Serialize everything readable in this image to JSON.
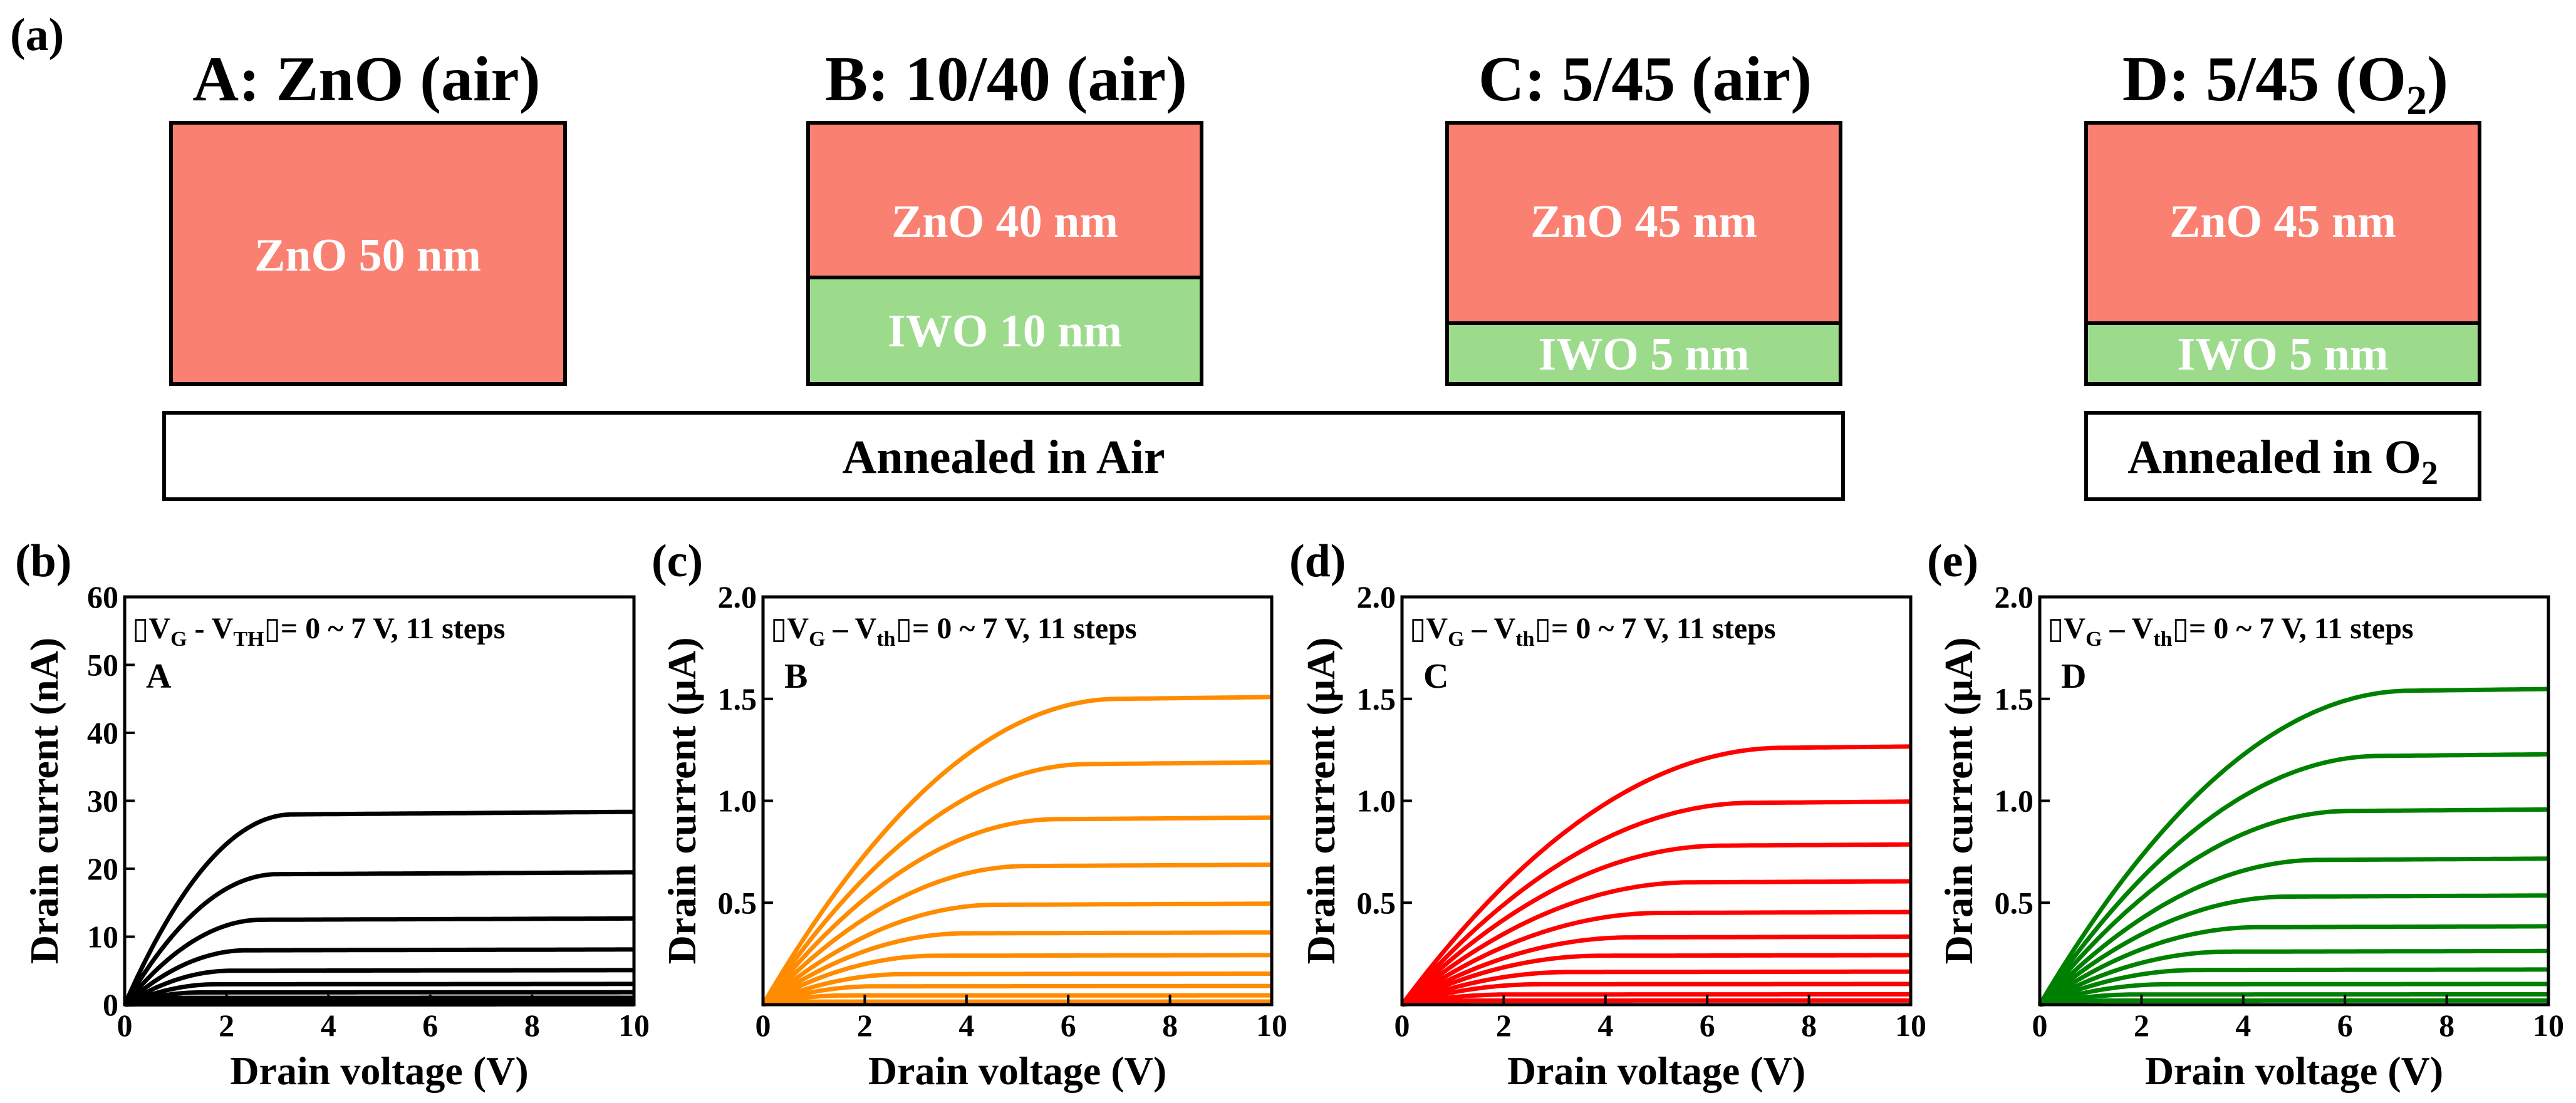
{
  "figure_label_a": "(a)",
  "schematic": {
    "devices": [
      {
        "id": "A",
        "title_pre": "A: ZnO (air)",
        "title_sub": "",
        "title_post": "",
        "layers": [
          {
            "name": "zno",
            "label": "ZnO 50 nm"
          }
        ]
      },
      {
        "id": "B",
        "title_pre": "B: 10/40 (air)",
        "title_sub": "",
        "title_post": "",
        "layers": [
          {
            "name": "zno",
            "label": "ZnO 40 nm"
          },
          {
            "name": "iwo",
            "label": "IWO 10 nm"
          }
        ]
      },
      {
        "id": "C",
        "title_pre": "C: 5/45 (air)",
        "title_sub": "",
        "title_post": "",
        "layers": [
          {
            "name": "zno",
            "label": "ZnO 45 nm"
          },
          {
            "name": "iwo",
            "label": "IWO 5 nm"
          }
        ]
      },
      {
        "id": "D",
        "title_pre": "D: 5/45 (O",
        "title_sub": "2",
        "title_post": ")",
        "layers": [
          {
            "name": "zno",
            "label": "ZnO 45 nm"
          },
          {
            "name": "iwo",
            "label": "IWO 5 nm"
          }
        ]
      }
    ],
    "annealing": [
      {
        "pre": "Annealed in Air",
        "sub": ""
      },
      {
        "pre": "Annealed in O",
        "sub": "2"
      }
    ]
  },
  "colors": {
    "zno": "#FA8072",
    "iwo": "#9CDA8C",
    "curve_A": "#000000",
    "curve_B": "#FF8C00",
    "curve_C": "#FF0000",
    "curve_D": "#008000"
  },
  "chart_data": [
    {
      "panel": "(b)",
      "type": "line",
      "device": "A",
      "color": "#000000",
      "title": "",
      "xlabel": "Drain voltage (V)",
      "ylabel": "Drain current (nA)",
      "xlim": [
        0,
        10
      ],
      "ylim": [
        0,
        60
      ],
      "xticks": [
        0,
        2,
        4,
        6,
        8,
        10
      ],
      "xtick_labels": [
        "0",
        "2",
        "4",
        "6",
        "8",
        "10"
      ],
      "yticks": [
        0,
        10,
        20,
        30,
        40,
        50,
        60
      ],
      "ytick_labels": [
        "0",
        "10",
        "20",
        "30",
        "40",
        "50",
        "60"
      ],
      "annotation": {
        "pre": "▯V",
        "sub1": "G",
        "mid": " - V",
        "sub2": "TH",
        "post": "▯= 0 ~ 7 V, 11 steps"
      },
      "series_label": "A",
      "series": [
        {
          "name": "step 11",
          "isat": 28.0,
          "vsat": 3.3
        },
        {
          "name": "step 10",
          "isat": 19.2,
          "vsat": 3.0
        },
        {
          "name": "step 9",
          "isat": 12.5,
          "vsat": 2.7
        },
        {
          "name": "step 8",
          "isat": 8.0,
          "vsat": 2.4
        },
        {
          "name": "step 7",
          "isat": 5.0,
          "vsat": 2.1
        },
        {
          "name": "step 6",
          "isat": 3.0,
          "vsat": 1.8
        },
        {
          "name": "step 5",
          "isat": 1.8,
          "vsat": 1.5
        },
        {
          "name": "step 4",
          "isat": 1.0,
          "vsat": 1.2
        },
        {
          "name": "step 3",
          "isat": 0.5,
          "vsat": 0.9
        },
        {
          "name": "step 2",
          "isat": 0.2,
          "vsat": 0.6
        },
        {
          "name": "step 1",
          "isat": 0.05,
          "vsat": 0.4
        }
      ]
    },
    {
      "panel": "(c)",
      "type": "line",
      "device": "B",
      "color": "#FF8C00",
      "title": "",
      "xlabel": "Drain voltage (V)",
      "ylabel": "Drain current (μA)",
      "xlim": [
        0,
        10
      ],
      "ylim": [
        0,
        2.0
      ],
      "xticks": [
        0,
        2,
        4,
        6,
        8,
        10
      ],
      "xtick_labels": [
        "0",
        "2",
        "4",
        "6",
        "8",
        "10"
      ],
      "yticks": [
        0.5,
        1.0,
        1.5,
        2.0
      ],
      "ytick_labels": [
        "0.5",
        "1.0",
        "1.5",
        "2.0"
      ],
      "annotation": {
        "pre": "▯V",
        "sub1": "G",
        "mid": " – V",
        "sub2": "th",
        "post": "▯= 0 ~ 7 V, 11 steps"
      },
      "series_label": "B",
      "series": [
        {
          "name": "step 11",
          "isat": 1.5,
          "vsat": 7.0
        },
        {
          "name": "step 10",
          "isat": 1.18,
          "vsat": 6.4
        },
        {
          "name": "step 9",
          "isat": 0.91,
          "vsat": 5.8
        },
        {
          "name": "step 8",
          "isat": 0.68,
          "vsat": 5.2
        },
        {
          "name": "step 7",
          "isat": 0.49,
          "vsat": 4.6
        },
        {
          "name": "step 6",
          "isat": 0.35,
          "vsat": 4.0
        },
        {
          "name": "step 5",
          "isat": 0.24,
          "vsat": 3.4
        },
        {
          "name": "step 4",
          "isat": 0.15,
          "vsat": 2.8
        },
        {
          "name": "step 3",
          "isat": 0.09,
          "vsat": 2.2
        },
        {
          "name": "step 2",
          "isat": 0.045,
          "vsat": 1.6
        },
        {
          "name": "step 1",
          "isat": 0.015,
          "vsat": 1.0
        }
      ]
    },
    {
      "panel": "(d)",
      "type": "line",
      "device": "C",
      "color": "#FF0000",
      "title": "",
      "xlabel": "Drain voltage (V)",
      "ylabel": "Drain current (μA)",
      "xlim": [
        0,
        10
      ],
      "ylim": [
        0,
        2.0
      ],
      "xticks": [
        0,
        2,
        4,
        6,
        8,
        10
      ],
      "xtick_labels": [
        "0",
        "2",
        "4",
        "6",
        "8",
        "10"
      ],
      "yticks": [
        0.5,
        1.0,
        1.5,
        2.0
      ],
      "ytick_labels": [
        "0.5",
        "1.0",
        "1.5",
        "2.0"
      ],
      "annotation": {
        "pre": "▯V",
        "sub1": "G",
        "mid": " – V",
        "sub2": "th",
        "post": "▯= 0 ~ 7 V, 11 steps"
      },
      "series_label": "C",
      "series": [
        {
          "name": "step 11",
          "isat": 1.26,
          "vsat": 7.5
        },
        {
          "name": "step 10",
          "isat": 0.99,
          "vsat": 6.9
        },
        {
          "name": "step 9",
          "isat": 0.78,
          "vsat": 6.3
        },
        {
          "name": "step 8",
          "isat": 0.6,
          "vsat": 5.7
        },
        {
          "name": "step 7",
          "isat": 0.45,
          "vsat": 5.1
        },
        {
          "name": "step 6",
          "isat": 0.33,
          "vsat": 4.5
        },
        {
          "name": "step 5",
          "isat": 0.24,
          "vsat": 3.9
        },
        {
          "name": "step 4",
          "isat": 0.16,
          "vsat": 3.3
        },
        {
          "name": "step 3",
          "isat": 0.1,
          "vsat": 2.7
        },
        {
          "name": "step 2",
          "isat": 0.05,
          "vsat": 2.1
        },
        {
          "name": "step 1",
          "isat": 0.02,
          "vsat": 1.5
        }
      ]
    },
    {
      "panel": "(e)",
      "type": "line",
      "device": "D",
      "color": "#008000",
      "title": "",
      "xlabel": "Drain voltage (V)",
      "ylabel": "Drain current (μA)",
      "xlim": [
        0,
        10
      ],
      "ylim": [
        0,
        2.0
      ],
      "xticks": [
        0,
        2,
        4,
        6,
        8,
        10
      ],
      "xtick_labels": [
        "0",
        "2",
        "4",
        "6",
        "8",
        "10"
      ],
      "yticks": [
        0.5,
        1.0,
        1.5,
        2.0
      ],
      "ytick_labels": [
        "0.5",
        "1.0",
        "1.5",
        "2.0"
      ],
      "annotation": {
        "pre": "▯V",
        "sub1": "G",
        "mid": " – V",
        "sub2": "th",
        "post": "▯= 0 ~ 7 V, 11 steps"
      },
      "series_label": "D",
      "series": [
        {
          "name": "step 11",
          "isat": 1.54,
          "vsat": 7.3
        },
        {
          "name": "step 10",
          "isat": 1.22,
          "vsat": 6.7
        },
        {
          "name": "step 9",
          "isat": 0.95,
          "vsat": 6.1
        },
        {
          "name": "step 8",
          "isat": 0.71,
          "vsat": 5.5
        },
        {
          "name": "step 7",
          "isat": 0.53,
          "vsat": 4.9
        },
        {
          "name": "step 6",
          "isat": 0.38,
          "vsat": 4.3
        },
        {
          "name": "step 5",
          "isat": 0.26,
          "vsat": 3.7
        },
        {
          "name": "step 4",
          "isat": 0.17,
          "vsat": 3.1
        },
        {
          "name": "step 3",
          "isat": 0.1,
          "vsat": 2.5
        },
        {
          "name": "step 2",
          "isat": 0.05,
          "vsat": 1.9
        },
        {
          "name": "step 1",
          "isat": 0.02,
          "vsat": 1.3
        }
      ]
    }
  ]
}
